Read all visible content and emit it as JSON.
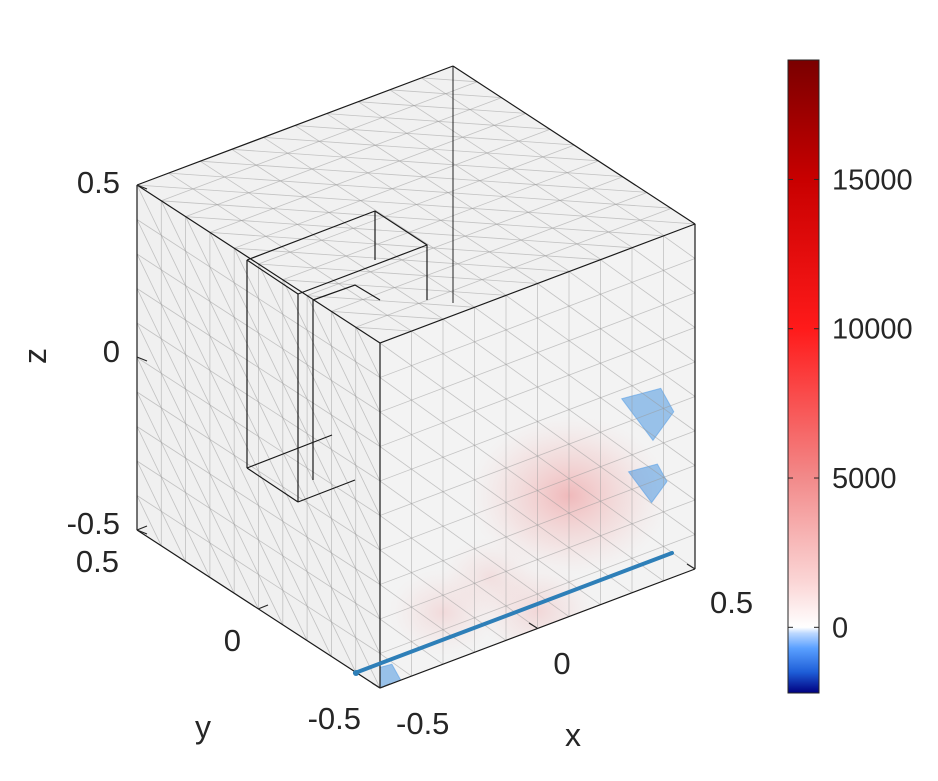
{
  "chart_data": {
    "type": "heatmap",
    "plot_kind": "3d-volume-slice",
    "title": "",
    "xlabel": "x",
    "ylabel": "y",
    "zlabel": "z",
    "xlim": [
      -0.5,
      0.5
    ],
    "ylim": [
      -0.5,
      0.5
    ],
    "zlim": [
      -0.5,
      0.5
    ],
    "x_ticks": [
      "-0.5",
      "0",
      "0.5"
    ],
    "y_ticks": [
      "0.5",
      "0",
      "-0.5"
    ],
    "z_ticks": [
      "0.5",
      "0",
      "-0.5"
    ],
    "grid": true,
    "box": true,
    "slice": {
      "plane": "y = -0.5 (front face)",
      "hotspots": [
        {
          "x": 0.1,
          "z": -0.15,
          "value": 2500
        },
        {
          "x": -0.3,
          "z": -0.35,
          "value": 600
        },
        {
          "x": 0.0,
          "z": -0.45,
          "value": 800
        },
        {
          "x": -0.15,
          "z": -0.3,
          "value": 400
        }
      ],
      "cold_spots": [
        {
          "x": 0.35,
          "z": 0.0,
          "value": -800
        },
        {
          "x": -0.5,
          "z": -0.5,
          "value": -700
        },
        {
          "x": 0.35,
          "z": -0.2,
          "value": -500
        }
      ]
    },
    "colorbar": {
      "position": "right",
      "range": [
        -2200,
        19000
      ],
      "ticks": [
        {
          "value": 15000,
          "label": "15000"
        },
        {
          "value": 10000,
          "label": "10000"
        },
        {
          "value": 5000,
          "label": "5000"
        },
        {
          "value": 0,
          "label": "0"
        }
      ],
      "colormap": "blue-white-red"
    },
    "line_color": "#2e7fb8"
  }
}
